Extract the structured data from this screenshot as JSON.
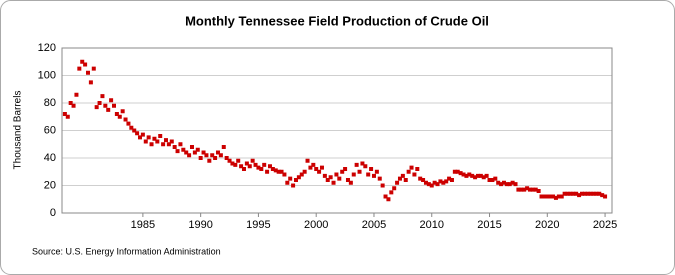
{
  "chart_data": {
    "type": "scatter",
    "title": "Monthly Tennessee Field Production of Crude Oil",
    "ylabel": "Thousand Barrels",
    "source": "Source: U.S. Energy Information Administration",
    "xlim": [
      1978,
      2025.6
    ],
    "xticks": [
      1985,
      1990,
      1995,
      2000,
      2005,
      2010,
      2015,
      2020,
      2025
    ],
    "ylim": [
      0,
      120
    ],
    "yticks": [
      0,
      20,
      40,
      60,
      80,
      100,
      120
    ],
    "grid": true,
    "color": "#cc0000",
    "x": [
      1978.25,
      1978.5,
      1978.75,
      1979,
      1979.25,
      1979.5,
      1979.75,
      1980,
      1980.25,
      1980.5,
      1980.75,
      1981,
      1981.25,
      1981.5,
      1981.75,
      1982,
      1982.25,
      1982.5,
      1982.75,
      1983,
      1983.25,
      1983.5,
      1983.75,
      1984,
      1984.25,
      1984.5,
      1984.75,
      1985,
      1985.25,
      1985.5,
      1985.75,
      1986,
      1986.25,
      1986.5,
      1986.75,
      1987,
      1987.25,
      1987.5,
      1987.75,
      1988,
      1988.25,
      1988.5,
      1988.75,
      1989,
      1989.25,
      1989.5,
      1989.75,
      1990,
      1990.25,
      1990.5,
      1990.75,
      1991,
      1991.25,
      1991.5,
      1991.75,
      1992,
      1992.25,
      1992.5,
      1992.75,
      1993,
      1993.25,
      1993.5,
      1993.75,
      1994,
      1994.25,
      1994.5,
      1994.75,
      1995,
      1995.25,
      1995.5,
      1995.75,
      1996,
      1996.25,
      1996.5,
      1996.75,
      1997,
      1997.25,
      1997.5,
      1997.75,
      1998,
      1998.25,
      1998.5,
      1998.75,
      1999,
      1999.25,
      1999.5,
      1999.75,
      2000,
      2000.25,
      2000.5,
      2000.75,
      2001,
      2001.25,
      2001.5,
      2001.75,
      2002,
      2002.25,
      2002.5,
      2002.75,
      2003,
      2003.25,
      2003.5,
      2003.75,
      2004,
      2004.25,
      2004.5,
      2004.75,
      2005,
      2005.25,
      2005.5,
      2005.75,
      2006,
      2006.25,
      2006.5,
      2006.75,
      2007,
      2007.25,
      2007.5,
      2007.75,
      2008,
      2008.25,
      2008.5,
      2008.75,
      2009,
      2009.25,
      2009.5,
      2009.75,
      2010,
      2010.25,
      2010.5,
      2010.75,
      2011,
      2011.25,
      2011.5,
      2011.75,
      2012,
      2012.25,
      2012.5,
      2012.75,
      2013,
      2013.25,
      2013.5,
      2013.75,
      2014,
      2014.25,
      2014.5,
      2014.75,
      2015,
      2015.25,
      2015.5,
      2015.75,
      2016,
      2016.25,
      2016.5,
      2016.75,
      2017,
      2017.25,
      2017.5,
      2017.75,
      2018,
      2018.25,
      2018.5,
      2018.75,
      2019,
      2019.25,
      2019.5,
      2019.75,
      2020,
      2020.25,
      2020.5,
      2020.75,
      2021,
      2021.25,
      2021.5,
      2021.75,
      2022,
      2022.25,
      2022.5,
      2022.75,
      2023,
      2023.25,
      2023.5,
      2023.75,
      2024,
      2024.25,
      2024.5,
      2024.75,
      2025
    ],
    "values": [
      72,
      70,
      80,
      78,
      86,
      105,
      110,
      108,
      102,
      95,
      105,
      77,
      80,
      85,
      78,
      75,
      82,
      78,
      72,
      70,
      74,
      68,
      65,
      62,
      60,
      58,
      55,
      57,
      52,
      55,
      50,
      54,
      52,
      56,
      50,
      53,
      50,
      52,
      48,
      45,
      50,
      46,
      44,
      42,
      48,
      44,
      46,
      40,
      44,
      42,
      38,
      42,
      40,
      44,
      42,
      48,
      40,
      38,
      36,
      35,
      38,
      34,
      32,
      36,
      34,
      38,
      35,
      33,
      32,
      35,
      30,
      34,
      32,
      31,
      30,
      30,
      28,
      22,
      25,
      20,
      24,
      26,
      28,
      30,
      38,
      33,
      35,
      32,
      30,
      33,
      27,
      24,
      26,
      22,
      28,
      25,
      30,
      32,
      24,
      22,
      28,
      35,
      30,
      36,
      34,
      28,
      32,
      27,
      30,
      25,
      20,
      12,
      10,
      15,
      18,
      22,
      25,
      27,
      24,
      30,
      33,
      28,
      32,
      25,
      24,
      22,
      21,
      20,
      22,
      21,
      23,
      22,
      23,
      25,
      24,
      30,
      30,
      29,
      28,
      27,
      28,
      27,
      26,
      27,
      27,
      26,
      27,
      24,
      24,
      25,
      22,
      21,
      22,
      21,
      21,
      22,
      21,
      17,
      17,
      17,
      18,
      17,
      17,
      17,
      16,
      12,
      12,
      12,
      12,
      12,
      11,
      12,
      12,
      14,
      14,
      14,
      14,
      14,
      13,
      14,
      14,
      14,
      14,
      14,
      14,
      14,
      13,
      12
    ]
  }
}
